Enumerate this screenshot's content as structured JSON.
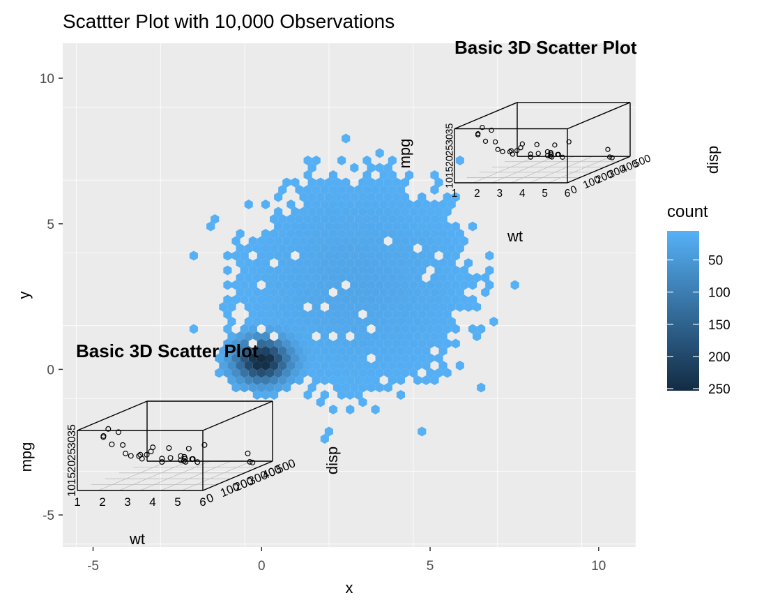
{
  "chart_data": [
    {
      "type": "hexbin",
      "title": "Scattter Plot with 10,000 Observations",
      "xlabel": "x",
      "ylabel": "y",
      "xlim": [
        -5.9,
        11.1
      ],
      "ylim": [
        -6.1,
        11.2
      ],
      "x_ticks": [
        -5,
        0,
        5,
        10
      ],
      "y_ticks": [
        -5,
        0,
        5,
        10
      ],
      "grid": true,
      "distribution": {
        "main_center": [
          2.8,
          3.0
        ],
        "main_spread": [
          2.0,
          2.2
        ],
        "dense_center": [
          0.0,
          0.3
        ],
        "dense_spread": [
          0.55,
          0.5
        ],
        "peak_count": 250
      },
      "legend": {
        "title": "count",
        "position": "right",
        "ticks": [
          50,
          100,
          150,
          200,
          250
        ],
        "low_color": "#56B1F7",
        "high_color": "#132B43"
      }
    },
    {
      "type": "scatter3d",
      "title": "Basic 3D Scatter Plot",
      "xlabel": "wt",
      "ylabel": "disp",
      "zlabel": "mpg",
      "x_ticks": [
        "1",
        "2",
        "3",
        "4",
        "5",
        "6"
      ],
      "y_ticks": [
        "0",
        "100",
        "200",
        "300",
        "400",
        "500"
      ],
      "z_ticks": [
        "10",
        "15",
        "20",
        "25",
        "30",
        "35"
      ],
      "points": [
        [
          2.62,
          160,
          21.0
        ],
        [
          2.875,
          160,
          21.0
        ],
        [
          2.32,
          108,
          22.8
        ],
        [
          3.215,
          258,
          21.4
        ],
        [
          3.44,
          360,
          18.7
        ],
        [
          3.46,
          225,
          18.1
        ],
        [
          3.57,
          360,
          14.3
        ],
        [
          3.19,
          146.7,
          24.4
        ],
        [
          3.15,
          140.8,
          22.8
        ],
        [
          3.44,
          167.6,
          19.2
        ],
        [
          3.44,
          167.6,
          17.8
        ],
        [
          4.07,
          275.8,
          16.4
        ],
        [
          3.73,
          275.8,
          17.3
        ],
        [
          3.78,
          275.8,
          15.2
        ],
        [
          5.25,
          472,
          10.4
        ],
        [
          5.424,
          460,
          10.4
        ],
        [
          5.345,
          440,
          14.7
        ],
        [
          2.2,
          78.7,
          32.4
        ],
        [
          1.615,
          75.7,
          30.4
        ],
        [
          1.835,
          71.1,
          33.9
        ],
        [
          2.465,
          120.1,
          21.5
        ],
        [
          3.52,
          318,
          15.5
        ],
        [
          3.435,
          304,
          15.2
        ],
        [
          3.84,
          350,
          13.3
        ],
        [
          3.845,
          400,
          19.2
        ],
        [
          1.935,
          79,
          27.3
        ],
        [
          2.14,
          120.3,
          26.0
        ],
        [
          1.513,
          95.1,
          30.4
        ],
        [
          3.17,
          351,
          15.8
        ],
        [
          2.77,
          145,
          19.7
        ],
        [
          3.57,
          301,
          15.0
        ],
        [
          2.78,
          121,
          21.4
        ]
      ]
    }
  ]
}
